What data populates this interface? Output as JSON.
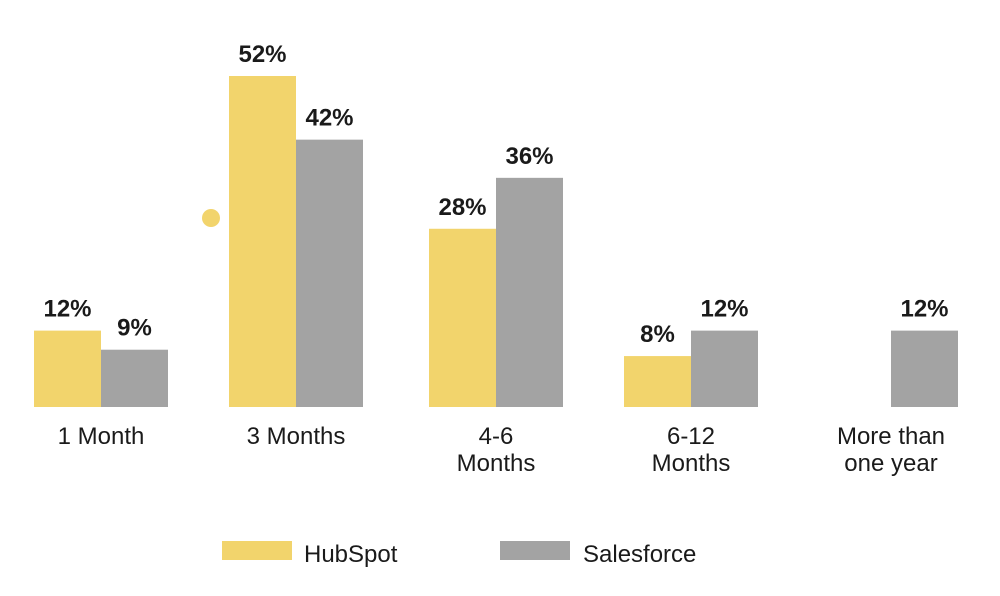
{
  "chart_data": {
    "type": "bar",
    "categories": [
      "1 Month",
      "3 Months",
      "4-6 Months",
      "6-12 Months",
      "More than one year"
    ],
    "category_lines": [
      [
        "1 Month"
      ],
      [
        "3 Months"
      ],
      [
        "4-6",
        "Months"
      ],
      [
        "6-12",
        "Months"
      ],
      [
        "More than",
        "one year"
      ]
    ],
    "series": [
      {
        "name": "HubSpot",
        "values": [
          12,
          52,
          28,
          8,
          null
        ],
        "labels": [
          "12%",
          "52%",
          "28%",
          "8%",
          ""
        ],
        "color": "#f2d46c"
      },
      {
        "name": "Salesforce",
        "values": [
          9,
          42,
          36,
          12,
          12
        ],
        "labels": [
          "9%",
          "42%",
          "36%",
          "12%",
          "12%"
        ],
        "color": "#a3a3a3"
      }
    ],
    "ylim": [
      0,
      52
    ],
    "grid": false,
    "legend": "bottom",
    "title": "",
    "xlabel": "",
    "ylabel": ""
  }
}
